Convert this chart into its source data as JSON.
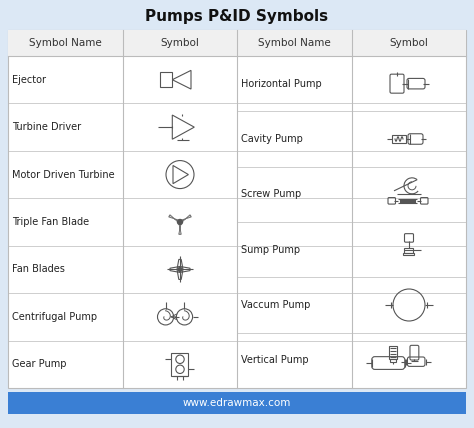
{
  "title": "Pumps P&ID Symbols",
  "background_color": "#dce8f5",
  "table_bg": "#ffffff",
  "border_color": "#bbbbbb",
  "title_fontsize": 11,
  "header_fontsize": 7.5,
  "cell_fontsize": 7,
  "footer_text": "www.edrawmax.com",
  "footer_bg": "#3a7fd4",
  "footer_text_color": "#ffffff",
  "left_rows": [
    "Ejector",
    "Turbine Driver",
    "Motor Driven Turbine",
    "Triple Fan Blade",
    "Fan Blades",
    "Centrifugal Pump",
    "Gear Pump"
  ],
  "right_rows": [
    "Horizontal Pump",
    "Cavity Pump",
    "Screw Pump",
    "Sump Pump",
    "Vaccum Pump",
    "Vertical Pump"
  ],
  "line_color": "#555555",
  "fig_w": 4.74,
  "fig_h": 4.28,
  "dpi": 100
}
